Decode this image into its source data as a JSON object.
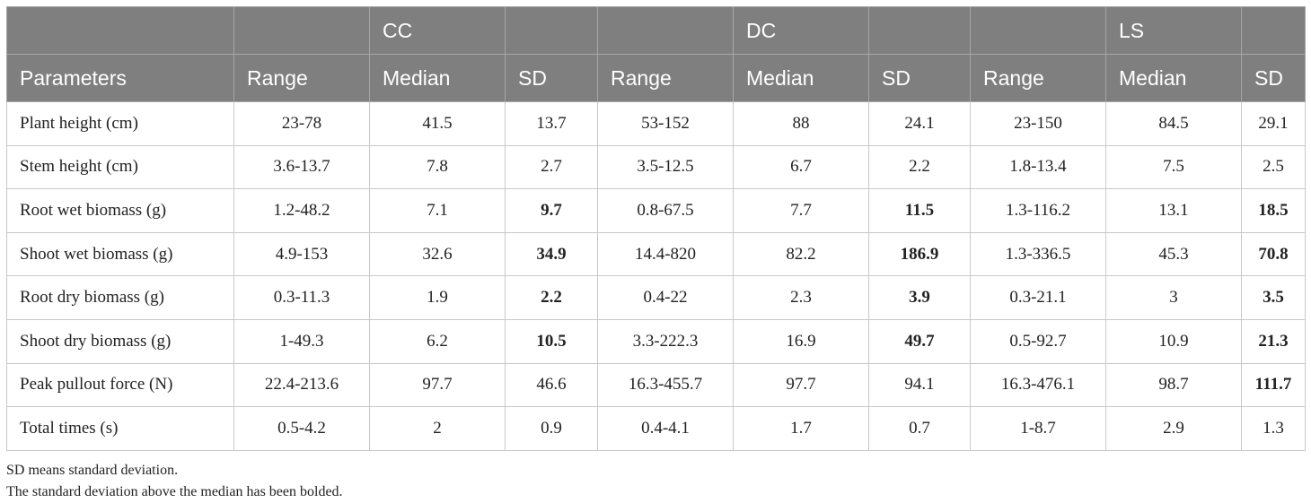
{
  "groups": [
    "",
    "",
    "CC",
    "",
    "",
    "DC",
    "",
    "",
    "LS",
    ""
  ],
  "columns": [
    "Parameters",
    "Range",
    "Median",
    "SD",
    "Range",
    "Median",
    "SD",
    "Range",
    "Median",
    "SD"
  ],
  "rows": [
    {
      "param": "Plant height (cm)",
      "cells": [
        "23-78",
        "41.5",
        "13.7",
        "53-152",
        "88",
        "24.1",
        "23-150",
        "84.5",
        "29.1"
      ],
      "bold": [
        false,
        false,
        false,
        false,
        false,
        false,
        false,
        false,
        false
      ]
    },
    {
      "param": "Stem height (cm)",
      "cells": [
        "3.6-13.7",
        "7.8",
        "2.7",
        "3.5-12.5",
        "6.7",
        "2.2",
        "1.8-13.4",
        "7.5",
        "2.5"
      ],
      "bold": [
        false,
        false,
        false,
        false,
        false,
        false,
        false,
        false,
        false
      ]
    },
    {
      "param": "Root wet biomass (g)",
      "cells": [
        "1.2-48.2",
        "7.1",
        "9.7",
        "0.8-67.5",
        "7.7",
        "11.5",
        "1.3-116.2",
        "13.1",
        "18.5"
      ],
      "bold": [
        false,
        false,
        true,
        false,
        false,
        true,
        false,
        false,
        true
      ]
    },
    {
      "param": "Shoot wet biomass (g)",
      "cells": [
        "4.9-153",
        "32.6",
        "34.9",
        "14.4-820",
        "82.2",
        "186.9",
        "1.3-336.5",
        "45.3",
        "70.8"
      ],
      "bold": [
        false,
        false,
        true,
        false,
        false,
        true,
        false,
        false,
        true
      ]
    },
    {
      "param": "Root dry biomass (g)",
      "cells": [
        "0.3-11.3",
        "1.9",
        "2.2",
        "0.4-22",
        "2.3",
        "3.9",
        "0.3-21.1",
        "3",
        "3.5"
      ],
      "bold": [
        false,
        false,
        true,
        false,
        false,
        true,
        false,
        false,
        true
      ]
    },
    {
      "param": "Shoot dry biomass (g)",
      "cells": [
        "1-49.3",
        "6.2",
        "10.5",
        "3.3-222.3",
        "16.9",
        "49.7",
        "0.5-92.7",
        "10.9",
        "21.3"
      ],
      "bold": [
        false,
        false,
        true,
        false,
        false,
        true,
        false,
        false,
        true
      ]
    },
    {
      "param": "Peak pullout force (N)",
      "cells": [
        "22.4-213.6",
        "97.7",
        "46.6",
        "16.3-455.7",
        "97.7",
        "94.1",
        "16.3-476.1",
        "98.7",
        "111.7"
      ],
      "bold": [
        false,
        false,
        false,
        false,
        false,
        false,
        false,
        false,
        true
      ]
    },
    {
      "param": "Total times (s)",
      "cells": [
        "0.5-4.2",
        "2",
        "0.9",
        "0.4-4.1",
        "1.7",
        "0.7",
        "1-8.7",
        "2.9",
        "1.3"
      ],
      "bold": [
        false,
        false,
        false,
        false,
        false,
        false,
        false,
        false,
        false
      ]
    }
  ],
  "notes": [
    "SD means standard deviation.",
    "The standard deviation above the median has been bolded."
  ]
}
